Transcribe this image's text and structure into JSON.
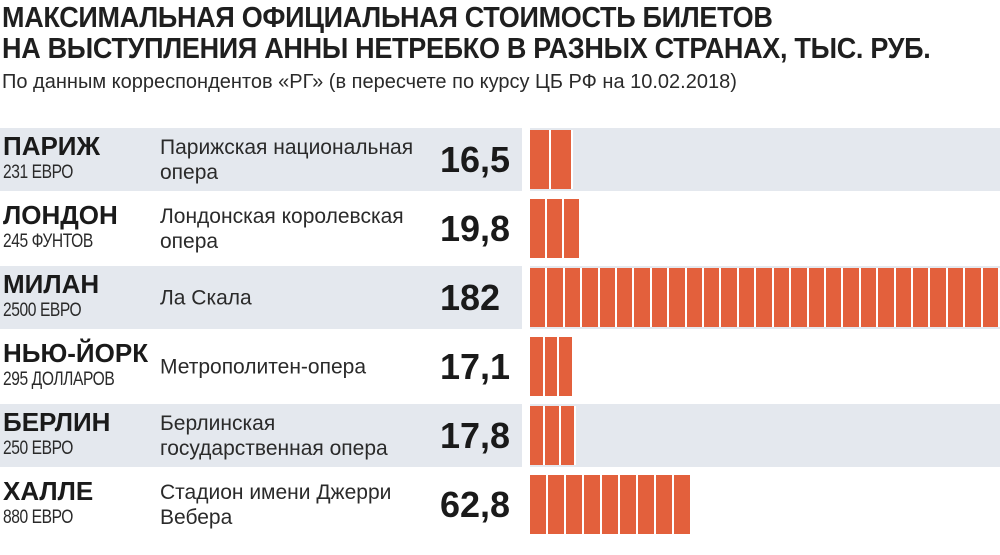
{
  "title_lines": [
    "МАКСИМАЛЬНАЯ ОФИЦИАЛЬНАЯ СТОИМОСТЬ БИЛЕТОВ",
    "НА ВЫСТУПЛЕНИЯ АННЫ НЕТРЕБКО В РАЗНЫХ СТРАНАХ, ТЫС. РУБ."
  ],
  "subtitle": "По данным корреспондентов «РГ» (в пересчете по курсу ЦБ РФ на 10.02.2018)",
  "colors": {
    "bar": "#e3603c",
    "row_shade": "#e4e8ee"
  },
  "chart_data": {
    "type": "bar",
    "orientation": "horizontal",
    "title": "МАКСИМАЛЬНАЯ ОФИЦИАЛЬНАЯ СТОИМОСТЬ БИЛЕТОВ НА ВЫСТУПЛЕНИЯ АННЫ НЕТРЕБКО В РАЗНЫХ СТРАНАХ, ТЫС. РУБ.",
    "subtitle": "По данным корреспондентов «РГ» (в пересчете по курсу ЦБ РФ на 10.02.2018)",
    "xlim": [
      0,
      182
    ],
    "grid": false,
    "categories": [
      "ПАРИЖ",
      "ЛОНДОН",
      "МИЛАН",
      "НЬЮ-ЙОРК",
      "БЕРЛИН",
      "ХАЛЛЕ"
    ],
    "values": [
      16.5,
      19.8,
      182,
      17.1,
      17.8,
      62.8
    ],
    "rows": [
      {
        "city": "ПАРИЖ",
        "price": "231 ЕВРО",
        "venue": "Парижская национальная опера",
        "value": 16.5,
        "value_label": "16,5"
      },
      {
        "city": "ЛОНДОН",
        "price": "245 ФУНТОВ",
        "venue": "Лондонская королевская опера",
        "value": 19.8,
        "value_label": "19,8"
      },
      {
        "city": "МИЛАН",
        "price": "2500 ЕВРО",
        "venue": "Ла Скала",
        "value": 182,
        "value_label": "182"
      },
      {
        "city": "НЬЮ-ЙОРК",
        "price": "295 ДОЛЛАРОВ",
        "venue": "Метрополитен-опера",
        "value": 17.1,
        "value_label": "17,1"
      },
      {
        "city": "БЕРЛИН",
        "price": "250 ЕВРО",
        "venue": "Берлинская государственная опера",
        "value": 17.8,
        "value_label": "17,8"
      },
      {
        "city": "ХАЛЛЕ",
        "price": "880 ЕВРО",
        "venue": "Стадион имени Джерри Вебера",
        "value": 62.8,
        "value_label": "62,8"
      }
    ]
  }
}
